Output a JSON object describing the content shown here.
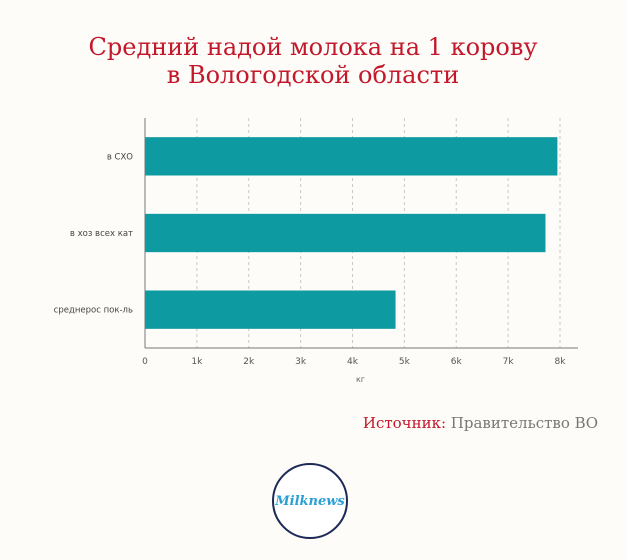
{
  "title_lines": [
    "Средний надой молока на 1 корову",
    "в Вологодской области"
  ],
  "source": {
    "label": "Источник:",
    "value": "Правительство ВО"
  },
  "logo": {
    "text": "Milknews"
  },
  "colors": {
    "bar": "#0e9aa1",
    "title": "#c3182b",
    "logo_border": "#1d2a57",
    "logo_text": "#2a9fd6"
  },
  "chart_data": {
    "type": "bar",
    "orientation": "horizontal",
    "categories": [
      "в СХО",
      "в хоз всех кат",
      "среднерос пок-ль"
    ],
    "values": [
      7950,
      7720,
      4830
    ],
    "xlabel": "кг",
    "xlim": [
      0,
      8000
    ],
    "xticks": [
      0,
      1000,
      2000,
      3000,
      4000,
      5000,
      6000,
      7000,
      8000
    ],
    "xtick_labels": [
      "0",
      "1k",
      "2k",
      "3k",
      "4k",
      "5k",
      "6k",
      "7k",
      "8k"
    ],
    "grid": "vertical dashed"
  }
}
